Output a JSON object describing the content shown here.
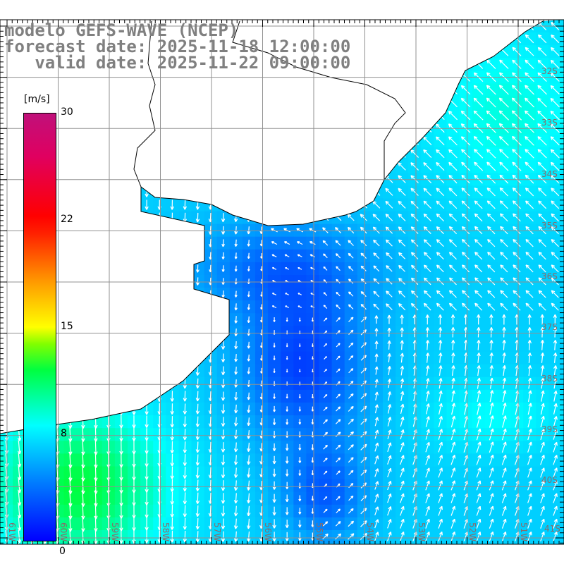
{
  "title": {
    "model": "modelo GEFS-WAVE (NCEP)",
    "forecast": "forecast date: 2025-11-18 12:00:00",
    "valid": "   valid date: 2025-11-22 09:00:00"
  },
  "colorbar": {
    "unit": "[m/s]",
    "ticks": [
      "30",
      "22",
      "15",
      "8",
      "0"
    ]
  },
  "lon_labels": [
    "61W",
    "60W",
    "59W",
    "58W",
    "57W",
    "56W",
    "55W",
    "54W",
    "53W",
    "52W",
    "51W"
  ],
  "lat_labels": [
    "32S",
    "33S",
    "34S",
    "35S",
    "36S",
    "37S",
    "38S",
    "39S",
    "40S",
    "41S"
  ],
  "colors": {
    "land": "#ffffff",
    "grid": "#909090",
    "label": "#808080"
  }
}
